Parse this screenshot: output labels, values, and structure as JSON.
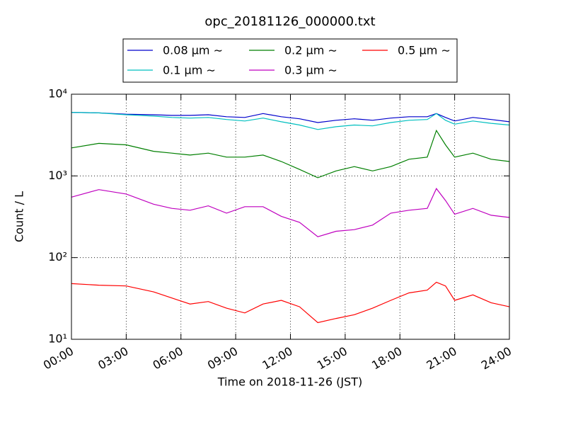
{
  "chart_data": {
    "type": "line",
    "title": "opc_20181126_000000.txt",
    "xlabel": "Time on 2018-11-26 (JST)",
    "ylabel": "Count / L",
    "x": [
      0,
      1.5,
      3,
      4.5,
      5.5,
      6.5,
      7.5,
      8.5,
      9.5,
      10.5,
      11.5,
      12.5,
      13.5,
      14.5,
      15.5,
      16.5,
      17.5,
      18.5,
      19.5,
      20,
      20.5,
      21,
      22,
      23,
      24
    ],
    "series": [
      {
        "name": "0.08 μm ∼",
        "color": "#0000cc",
        "values": [
          6000,
          5900,
          5700,
          5600,
          5500,
          5500,
          5600,
          5300,
          5200,
          5800,
          5300,
          5000,
          4500,
          4800,
          5000,
          4800,
          5100,
          5300,
          5300,
          5800,
          5200,
          4700,
          5200,
          4900,
          4600
        ]
      },
      {
        "name": "0.1 μm ∼",
        "color": "#00bfbf",
        "values": [
          6000,
          5900,
          5600,
          5400,
          5200,
          5100,
          5200,
          4900,
          4700,
          5100,
          4600,
          4200,
          3700,
          4000,
          4200,
          4100,
          4500,
          4800,
          4900,
          5800,
          4800,
          4300,
          4700,
          4400,
          4200
        ]
      },
      {
        "name": "0.2 μm ∼",
        "color": "#007f00",
        "values": [
          2200,
          2500,
          2400,
          2000,
          1900,
          1800,
          1900,
          1700,
          1700,
          1800,
          1500,
          1200,
          950,
          1150,
          1300,
          1150,
          1300,
          1600,
          1700,
          3600,
          2400,
          1700,
          1900,
          1600,
          1500
        ]
      },
      {
        "name": "0.3 μm ∼",
        "color": "#bf00bf",
        "values": [
          550,
          680,
          600,
          450,
          400,
          380,
          430,
          350,
          420,
          420,
          320,
          270,
          180,
          210,
          220,
          250,
          350,
          380,
          400,
          700,
          500,
          340,
          400,
          330,
          310
        ]
      },
      {
        "name": "0.5 μm ∼",
        "color": "#ff0000",
        "values": [
          48,
          46,
          45,
          38,
          32,
          27,
          29,
          24,
          21,
          27,
          30,
          25,
          16,
          18,
          20,
          24,
          30,
          37,
          40,
          50,
          45,
          30,
          35,
          28,
          25
        ]
      }
    ],
    "xlim": [
      0,
      24
    ],
    "xticks": [
      {
        "value": 0,
        "label": "00:00"
      },
      {
        "value": 3,
        "label": "03:00"
      },
      {
        "value": 6,
        "label": "06:00"
      },
      {
        "value": 9,
        "label": "09:00"
      },
      {
        "value": 12,
        "label": "12:00"
      },
      {
        "value": 15,
        "label": "15:00"
      },
      {
        "value": 18,
        "label": "18:00"
      },
      {
        "value": 21,
        "label": "21:00"
      },
      {
        "value": 24,
        "label": "24:00"
      }
    ],
    "ylim": [
      10,
      10000
    ],
    "yticks": [
      {
        "value": 10,
        "label": "10¹"
      },
      {
        "value": 100,
        "label": "10²"
      },
      {
        "value": 1000,
        "label": "10³"
      },
      {
        "value": 10000,
        "label": "10⁴"
      }
    ],
    "yscale": "log",
    "grid": true,
    "legend": "top"
  }
}
